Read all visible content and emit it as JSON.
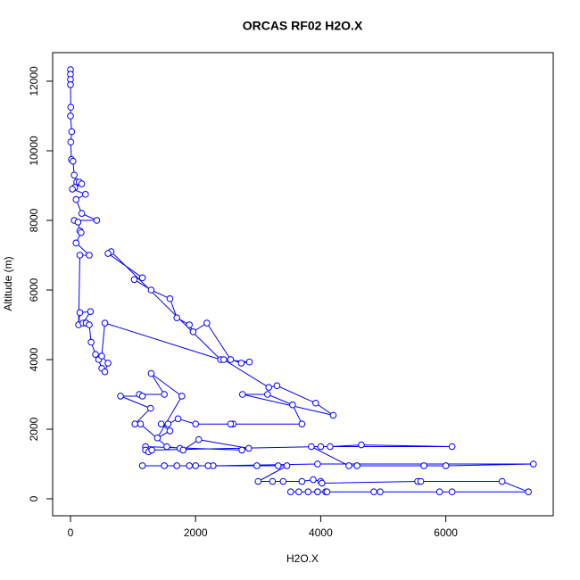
{
  "chart_data": {
    "type": "line",
    "markers": true,
    "title": "ORCAS RF02 H2O.X",
    "x_label": "H2O.X",
    "y_label": "Altitude (m)",
    "color": "#0000ff",
    "x": [
      0,
      0,
      0,
      0,
      5,
      0,
      20,
      5,
      15,
      40,
      60,
      100,
      140,
      180,
      70,
      30,
      240,
      90,
      180,
      420,
      60,
      120,
      150,
      170,
      90,
      300,
      150,
      130,
      150,
      320,
      200,
      250,
      300,
      330,
      400,
      450,
      500,
      550,
      600,
      500,
      550,
      2400,
      650,
      600,
      1150,
      1020,
      1290,
      1590,
      1700,
      1900,
      1960,
      2180,
      2560,
      2730,
      2860,
      2450,
      3170,
      3300,
      3920,
      4200,
      2750,
      3150,
      3550,
      3700,
      2600,
      2560,
      2000,
      1720,
      1560,
      1450,
      1590,
      1390,
      1780,
      1290,
      1500,
      1100,
      1150,
      800,
      1280,
      1030,
      1120,
      1540,
      1750,
      1800,
      2050,
      2850,
      2740,
      1200,
      1200,
      1250,
      1300,
      4000,
      4150,
      4650,
      6100,
      3850,
      4450,
      4580,
      5650,
      6000,
      7400,
      3950,
      2280,
      1150,
      1500,
      1700,
      1900,
      2000,
      2200,
      2980,
      3320,
      3460,
      3000,
      3230,
      3400,
      3700,
      3880,
      4000,
      4020,
      5550,
      5600,
      6900,
      7320,
      3950,
      4080,
      4850,
      4950,
      6100,
      5900,
      3520,
      3650,
      3800,
      3950,
      4100
    ],
    "values": [
      12330,
      12200,
      12050,
      11900,
      11250,
      11000,
      10550,
      10250,
      9750,
      9700,
      9300,
      9100,
      9100,
      9050,
      8950,
      8900,
      8750,
      8600,
      8200,
      8000,
      8000,
      7950,
      7700,
      7650,
      7350,
      7000,
      7000,
      5000,
      5350,
      5380,
      5050,
      5050,
      5000,
      4500,
      4150,
      4000,
      3750,
      3650,
      3900,
      4100,
      5050,
      4000,
      7100,
      7050,
      6350,
      6300,
      6000,
      5750,
      5200,
      5000,
      4800,
      5050,
      4000,
      3900,
      3930,
      4000,
      3200,
      3250,
      2750,
      2400,
      3000,
      3000,
      2700,
      2150,
      2150,
      2150,
      2150,
      2300,
      2150,
      2150,
      1950,
      1750,
      2950,
      3600,
      3000,
      3000,
      2950,
      2950,
      2600,
      2150,
      2150,
      1500,
      1450,
      1400,
      1700,
      1450,
      1400,
      1500,
      1400,
      1350,
      1400,
      1500,
      1500,
      1550,
      1500,
      1500,
      950,
      950,
      950,
      950,
      1000,
      1000,
      950,
      950,
      950,
      950,
      950,
      950,
      950,
      950,
      950,
      950,
      500,
      500,
      500,
      500,
      550,
      500,
      450,
      500,
      500,
      500,
      200,
      200,
      200,
      200,
      200,
      200,
      200,
      200,
      200,
      200,
      200,
      200
    ],
    "xlim": [
      -285,
      7717
    ],
    "ylim": [
      -487,
      12820
    ],
    "xticks": [
      0,
      2000,
      4000,
      6000
    ],
    "yticks": [
      0,
      2000,
      4000,
      6000,
      8000,
      10000,
      12000
    ]
  }
}
